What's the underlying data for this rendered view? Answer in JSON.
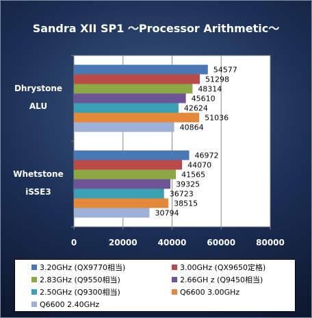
{
  "chart_data": {
    "type": "bar",
    "orientation": "horizontal",
    "title": "Sandra XII SP1 ～Processor Arithmetic～",
    "categories": [
      "Dhrystone\nALU",
      "Whetstone\niSSE3"
    ],
    "category_lines": [
      [
        "Dhrystone",
        "ALU"
      ],
      [
        "Whetstone",
        "iSSE3"
      ]
    ],
    "xlim": [
      0,
      80000
    ],
    "xticks": [
      0,
      20000,
      40000,
      60000,
      80000
    ],
    "grid": true,
    "legend_position": "bottom",
    "series": [
      {
        "name": "3.20GHz (QX9770相当)",
        "color": "#4a78b4",
        "values": [
          54577,
          46972
        ]
      },
      {
        "name": "3.00GHz (QX9650定格)",
        "color": "#b94a47",
        "values": [
          51298,
          44070
        ]
      },
      {
        "name": "2.83GHz (Q9550相当)",
        "color": "#8ca844",
        "values": [
          48314,
          41565
        ]
      },
      {
        "name": "2.66GH z (Q9450相当)",
        "color": "#6d5495",
        "values": [
          45610,
          39325
        ]
      },
      {
        "name": "2.50GHz (Q9300相当)",
        "color": "#3aa0b4",
        "values": [
          42624,
          36723
        ]
      },
      {
        "name": "Q6600 3.00GHz",
        "color": "#e4893a",
        "values": [
          51036,
          38515
        ]
      },
      {
        "name": "Q6600 2.40GHz",
        "color": "#9eb1d8",
        "values": [
          40864,
          30794
        ]
      }
    ]
  }
}
